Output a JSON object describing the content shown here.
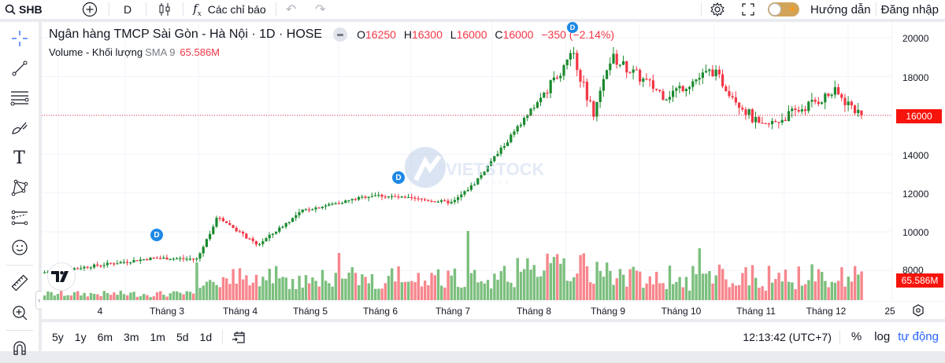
{
  "topbar": {
    "symbol": "SHB",
    "interval": "D",
    "indicators_label": "Các chỉ báo",
    "guide_label": "Hướng dẫn",
    "login_label": "Đăng nhập"
  },
  "legend": {
    "title": "Ngân hàng TMCP Sài Gòn - Hà Nội · 1D · HOSE",
    "open_key": "O",
    "open": "16250",
    "high_key": "H",
    "high": "16300",
    "low_key": "L",
    "low": "16000",
    "close_key": "C",
    "close": "16000",
    "change": "−350 (−2.14%)",
    "volume_label": "Volume - Khối lượng",
    "volume_sma": "SMA 9",
    "volume_value": "65.586M"
  },
  "price_axis": {
    "labels": [
      "20000",
      "18000",
      "16000",
      "14000",
      "12000",
      "10000",
      "8000"
    ],
    "last_price_tag": "16000",
    "volume_tag": "65.586M"
  },
  "time_axis": {
    "labels": [
      "4",
      "Tháng 3",
      "Tháng 4",
      "Tháng 5",
      "Tháng 6",
      "Tháng 7",
      "Tháng 8",
      "Tháng 9",
      "Tháng 10",
      "Tháng 11",
      "Tháng 12",
      "25"
    ]
  },
  "bottombar": {
    "ranges": [
      "5y",
      "1y",
      "6m",
      "3m",
      "1m",
      "5d",
      "1d"
    ],
    "time": "12:13:42 (UTC+7)",
    "percent_label": "%",
    "log_label": "log",
    "auto_label": "tự động"
  },
  "badges": {
    "dividend": "D"
  },
  "colors": {
    "up": "#1b8a2f",
    "down": "#f23645",
    "vol_up": "#7cbf7e",
    "vol_down": "#f7868d",
    "accent": "#2962ff",
    "price_tag": "#f7140c"
  },
  "chart_data": {
    "type": "candlestick",
    "title": "Ngân hàng TMCP Sài Gòn - Hà Nội · 1D · HOSE",
    "symbol": "SHB",
    "xlabel": "",
    "ylabel": "",
    "ylim": [
      7600,
      20600
    ],
    "y_ticks": [
      8000,
      10000,
      12000,
      14000,
      16000,
      18000,
      20000
    ],
    "x_ticks": [
      "4",
      "Tháng 3",
      "Tháng 4",
      "Tháng 5",
      "Tháng 6",
      "Tháng 7",
      "Tháng 8",
      "Tháng 9",
      "Tháng 10",
      "Tháng 11",
      "Tháng 12",
      "25"
    ],
    "grid": true,
    "last": {
      "open": 16250,
      "high": 16300,
      "low": 16000,
      "close": 16000,
      "change": -350,
      "change_pct": -2.14
    },
    "volume_sma9_last": "65.586M",
    "close_anchor_points": [
      {
        "x_label": "start",
        "close": 7900
      },
      {
        "x_label": "Tháng 3",
        "close": 8650
      },
      {
        "x_label": "Tháng 3 end",
        "close": 8600
      },
      {
        "x_label": "early Tháng 4",
        "close": 10800
      },
      {
        "x_label": "mid Tháng 4",
        "close": 9300
      },
      {
        "x_label": "Tháng 5",
        "close": 11100
      },
      {
        "x_label": "Tháng 6",
        "close": 11900
      },
      {
        "x_label": "Tháng 7",
        "close": 11500
      },
      {
        "x_label": "early Tháng 7",
        "close": 12500
      },
      {
        "x_label": "Tháng 8",
        "close": 17300
      },
      {
        "x_label": "mid Tháng 8",
        "close": 19200
      },
      {
        "x_label": "late Tháng 8",
        "close": 16000
      },
      {
        "x_label": "Tháng 9",
        "close": 19000
      },
      {
        "x_label": "Tháng 10",
        "close": 17000
      },
      {
        "x_label": "mid Tháng 10",
        "close": 18300
      },
      {
        "x_label": "Tháng 11",
        "close": 15300
      },
      {
        "x_label": "Tháng 12",
        "close": 17200
      },
      {
        "x_label": "end",
        "close": 16000
      }
    ]
  }
}
